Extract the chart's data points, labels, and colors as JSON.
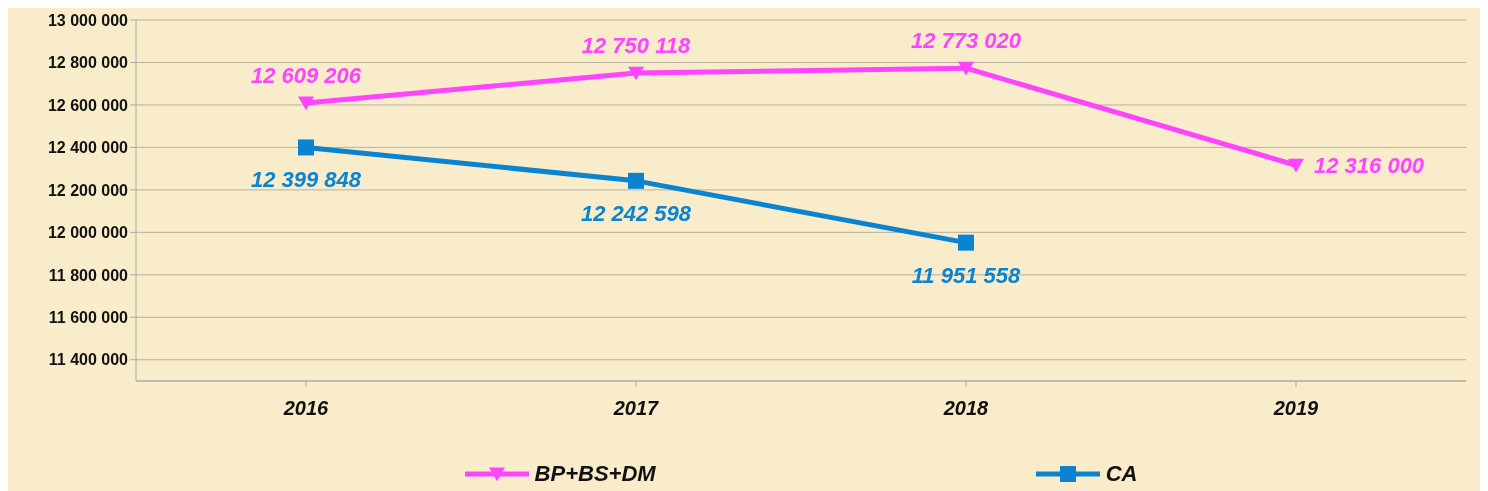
{
  "chart_data": {
    "type": "line",
    "categories": [
      "2016",
      "2017",
      "2018",
      "2019"
    ],
    "series": [
      {
        "name": "BP+BS+DM",
        "color": "#ff44ff",
        "marker": "triangle",
        "values": [
          12609206,
          12750118,
          12773020,
          12316000
        ],
        "value_labels": [
          "12 609 206",
          "12 750 118",
          "12 773 020",
          "12 316 000"
        ]
      },
      {
        "name": "CA",
        "color": "#0a84d0",
        "marker": "square",
        "values": [
          12399848,
          12242598,
          11951558,
          null
        ],
        "value_labels": [
          "12 399 848",
          "12 242 598",
          "11 951 558",
          null
        ]
      }
    ],
    "ylim": [
      11300000,
      13000000
    ],
    "yticks": [
      11400000,
      11600000,
      11800000,
      12000000,
      12200000,
      12400000,
      12600000,
      12800000,
      13000000
    ],
    "grid": "y",
    "legend": "bottom",
    "line_style": "solid"
  }
}
